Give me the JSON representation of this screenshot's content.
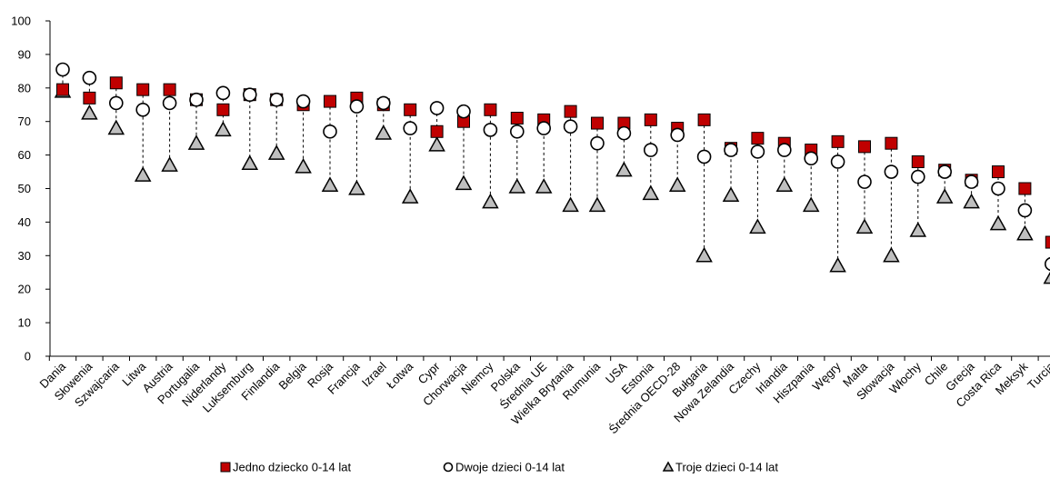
{
  "chart_data": {
    "type": "scatter",
    "ylim": [
      0,
      100
    ],
    "yticks": [
      0,
      10,
      20,
      30,
      40,
      50,
      60,
      70,
      80,
      90,
      100
    ],
    "grid": false,
    "legend_position": "bottom",
    "categories": [
      "Dania",
      "Słowenia",
      "Szwajcaria",
      "Litwa",
      "Austria",
      "Portugalia",
      "Niderlandy",
      "Luksemburg",
      "Finlandia",
      "Belgia",
      "Rosja",
      "Francja",
      "Izrael",
      "Łotwa",
      "Cypr",
      "Chorwacja",
      "Niemcy",
      "Polska",
      "Średnia UE",
      "Wielka Brytania",
      "Rumunia",
      "USA",
      "Estonia",
      "Średnia OECD-28",
      "Bułgaria",
      "Nowa Zelandia",
      "Czechy",
      "Irlandia",
      "Hiszpania",
      "Węgry",
      "Malta",
      "Słowacja",
      "Włochy",
      "Chile",
      "Grecja",
      "Costa Rica",
      "Meksyk",
      "Turcja"
    ],
    "series": [
      {
        "name": "Jedno dziecko 0-14 lat",
        "color": "#c00000",
        "marker": "square",
        "values": [
          79.5,
          77,
          81.5,
          79.5,
          79.5,
          76.5,
          73.5,
          78,
          76.5,
          75,
          76,
          77,
          75,
          73.5,
          67,
          70,
          73.5,
          71,
          70.5,
          73,
          69.5,
          69.5,
          70.5,
          68,
          70.5,
          62,
          65,
          63.5,
          61.5,
          64,
          62.5,
          63.5,
          58,
          55.5,
          52.5,
          55,
          50,
          34
        ]
      },
      {
        "name": "Dwoje dzieci 0-14 lat",
        "color": "#ffffff",
        "marker": "circle",
        "values": [
          85.5,
          83,
          75.5,
          73.5,
          75.5,
          76.5,
          78.5,
          78,
          76.5,
          76,
          67,
          74.5,
          75.5,
          68,
          74,
          73,
          67.5,
          67,
          68,
          68.5,
          63.5,
          66.5,
          61.5,
          66,
          59.5,
          61.5,
          61,
          61.5,
          59,
          58,
          52,
          55,
          53.5,
          55,
          52,
          50,
          43.5,
          27.5
        ]
      },
      {
        "name": "Troje dzieci 0-14 lat",
        "color": "#bfbfbf",
        "marker": "triangle",
        "values": [
          79,
          72.5,
          68,
          54,
          57,
          63.5,
          67.5,
          57.5,
          60.5,
          56.5,
          51,
          50,
          66.5,
          47.5,
          63,
          51.5,
          46,
          50.5,
          50.5,
          45,
          45,
          55.5,
          48.5,
          51,
          30,
          48,
          38.5,
          51,
          45,
          27,
          38.5,
          30,
          37.5,
          47.5,
          46,
          39.5,
          36.5,
          23.5
        ]
      }
    ]
  }
}
